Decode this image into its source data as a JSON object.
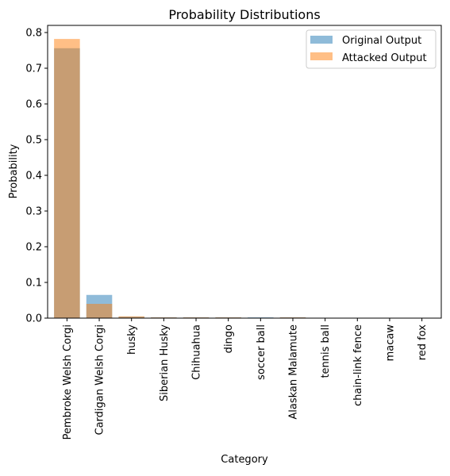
{
  "chart_data": {
    "type": "bar",
    "title": "Probability Distributions",
    "xlabel": "Category",
    "ylabel": "Probability",
    "ylim": [
      0,
      0.82
    ],
    "yticks": [
      "0.0",
      "0.1",
      "0.2",
      "0.3",
      "0.4",
      "0.5",
      "0.6",
      "0.7",
      "0.8"
    ],
    "categories": [
      "Pembroke Welsh Corgi",
      "Cardigan Welsh Corgi",
      "husky",
      "Siberian Husky",
      "Chihuahua",
      "dingo",
      "soccer ball",
      "Alaskan Malamute",
      "tennis ball",
      "chain-link fence",
      "macaw",
      "red fox"
    ],
    "series": [
      {
        "name": "Original Output",
        "color": "#1f77b4",
        "opacity": 0.5,
        "values": [
          0.756,
          0.065,
          0.004,
          0.002,
          0.002,
          0.002,
          0.002,
          0.002,
          0.001,
          0.001,
          0.001,
          0.001
        ]
      },
      {
        "name": "Attacked Output",
        "color": "#ff7f0e",
        "opacity": 0.5,
        "values": [
          0.782,
          0.04,
          0.005,
          0.002,
          0.002,
          0.002,
          0.001,
          0.002,
          0.001,
          0.001,
          0.001,
          0.001
        ]
      }
    ],
    "grid": false,
    "legend_position": "top-right"
  }
}
